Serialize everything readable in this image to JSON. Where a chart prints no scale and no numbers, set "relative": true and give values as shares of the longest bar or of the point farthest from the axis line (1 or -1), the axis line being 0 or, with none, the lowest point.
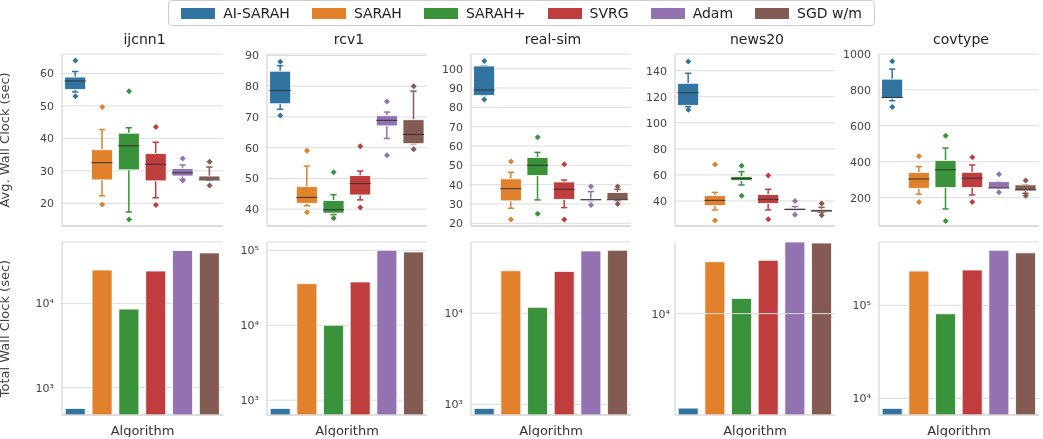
{
  "chart_data": [
    {
      "type": "other",
      "legend": "top",
      "series": [
        {
          "name": "AI-SARAH",
          "color": "#3274a1"
        },
        {
          "name": "SARAH",
          "color": "#e1812c"
        },
        {
          "name": "SARAH+",
          "color": "#3a923a"
        },
        {
          "name": "SVRG",
          "color": "#c03d3e"
        },
        {
          "name": "Adam",
          "color": "#9372b2"
        },
        {
          "name": "SGD w/m",
          "color": "#845b53"
        }
      ]
    },
    {
      "type": "box",
      "title": "ijcnn1",
      "ylabel": "Avg. Wall Clock (sec)",
      "categories": [
        null,
        null,
        null,
        null,
        null,
        null
      ],
      "colors": [
        "#3274a1",
        "#e1812c",
        "#3a923a",
        "#c03d3e",
        "#9372b2",
        "#845b53"
      ],
      "ylim": [
        13,
        66
      ],
      "yticks": [
        20,
        30,
        40,
        50,
        60
      ],
      "grid": "y",
      "tick_labels": "y",
      "boxes": [
        {
          "low": 54.3,
          "q1": 55.1,
          "median": 57.7,
          "q3": 58.9,
          "high": 60.6,
          "outliers": [
            64,
            53
          ]
        },
        {
          "low": 22.3,
          "q1": 27.2,
          "median": 32.5,
          "q3": 36.5,
          "high": 42.7,
          "outliers": [
            49.7,
            19.6
          ]
        },
        {
          "low": 17.3,
          "q1": 30.3,
          "median": 37.7,
          "q3": 41.6,
          "high": 43.3,
          "outliers": [
            54.5,
            15
          ]
        },
        {
          "low": 21.7,
          "q1": 26.9,
          "median": 32,
          "q3": 35.3,
          "high": 38.8,
          "outliers": [
            43.5,
            19.5
          ]
        },
        {
          "low": 27.4,
          "q1": 28.4,
          "median": 29.4,
          "q3": 30.7,
          "high": 31.8,
          "outliers": [
            33.8,
            27
          ]
        },
        {
          "low": 27.2,
          "q1": 27.2,
          "median": 27.2,
          "q3": 28.4,
          "high": 31.2,
          "outliers": [
            32.8,
            25.5
          ]
        }
      ]
    },
    {
      "type": "box",
      "title": "rcv1",
      "categories": [
        null,
        null,
        null,
        null,
        null,
        null
      ],
      "colors": [
        "#3274a1",
        "#e1812c",
        "#3a923a",
        "#c03d3e",
        "#9372b2",
        "#845b53"
      ],
      "ylim": [
        34.5,
        90.5
      ],
      "yticks": [
        40,
        50,
        60,
        70,
        80,
        90
      ],
      "grid": "y",
      "tick_labels": "y",
      "boxes": [
        {
          "low": 72.5,
          "q1": 74.3,
          "median": 78.6,
          "q3": 84.9,
          "high": 86.7,
          "outliers": [
            88,
            70.5
          ]
        },
        {
          "low": 41.1,
          "q1": 41.9,
          "median": 43.8,
          "q3": 47.3,
          "high": 54,
          "outliers": [
            59,
            39
          ]
        },
        {
          "low": 38.2,
          "q1": 38.7,
          "median": 39.8,
          "q3": 42.8,
          "high": 44.7,
          "outliers": [
            52,
            37
          ]
        },
        {
          "low": 43,
          "q1": 44.6,
          "median": 48.3,
          "q3": 50.9,
          "high": 52.4,
          "outliers": [
            60.5,
            40.5
          ]
        },
        {
          "low": 63,
          "q1": 67.1,
          "median": 68.9,
          "q3": 70.4,
          "high": 71.6,
          "outliers": [
            75,
            57.5
          ]
        },
        {
          "low": 61.3,
          "q1": 61.3,
          "median": 64.3,
          "q3": 69.1,
          "high": 78.4,
          "outliers": [
            80,
            59.5
          ]
        }
      ]
    },
    {
      "type": "box",
      "title": "real-sim",
      "categories": [
        null,
        null,
        null,
        null,
        null,
        null
      ],
      "colors": [
        "#3274a1",
        "#e1812c",
        "#3a923a",
        "#c03d3e",
        "#9372b2",
        "#845b53"
      ],
      "ylim": [
        18.6,
        107.6
      ],
      "yticks": [
        20,
        30,
        40,
        50,
        60,
        70,
        80,
        90,
        100
      ],
      "grid": "y",
      "tick_labels": "y",
      "boxes": [
        {
          "low": 86.2,
          "q1": 86.2,
          "median": 89,
          "q3": 101.4,
          "high": 101.4,
          "outliers": [
            104,
            84
          ]
        },
        {
          "low": 27.8,
          "q1": 31.6,
          "median": 37.9,
          "q3": 43,
          "high": 46.4,
          "outliers": [
            52,
            22
          ]
        },
        {
          "low": 32.1,
          "q1": 44.7,
          "median": 50,
          "q3": 54,
          "high": 56.7,
          "outliers": [
            64.5,
            25
          ]
        },
        {
          "low": 28.1,
          "q1": 32.4,
          "median": 37.6,
          "q3": 41.4,
          "high": 42.4,
          "outliers": [
            50.5,
            22
          ]
        },
        {
          "low": 31.7,
          "q1": 31.7,
          "median": 32.2,
          "q3": 32.6,
          "high": 36.4,
          "outliers": [
            39,
            29.5
          ]
        },
        {
          "low": 31.7,
          "q1": 32.1,
          "median": 32.2,
          "q3": 35.9,
          "high": 37.6,
          "outliers": [
            39,
            30
          ]
        }
      ]
    },
    {
      "type": "box",
      "title": "news20",
      "categories": [
        null,
        null,
        null,
        null,
        null,
        null
      ],
      "colors": [
        "#3274a1",
        "#e1812c",
        "#3a923a",
        "#c03d3e",
        "#9372b2",
        "#845b53"
      ],
      "ylim": [
        20.8,
        152.8
      ],
      "yticks": [
        40,
        60,
        80,
        100,
        120,
        140
      ],
      "grid": "y",
      "tick_labels": "y",
      "boxes": [
        {
          "low": 112.3,
          "q1": 113.4,
          "median": 123.1,
          "q3": 130.3,
          "high": 138,
          "outliers": [
            147,
            110
          ]
        },
        {
          "low": 33.1,
          "q1": 36.4,
          "median": 40.5,
          "q3": 44.1,
          "high": 46.6,
          "outliers": [
            68,
            25
          ]
        },
        {
          "low": 52.3,
          "q1": 55.6,
          "median": 57.2,
          "q3": 58.7,
          "high": 62.5,
          "outliers": [
            67,
            44
          ]
        },
        {
          "low": 33.1,
          "q1": 38.2,
          "median": 41.3,
          "q3": 44.9,
          "high": 49,
          "outliers": [
            59.5,
            26
          ]
        },
        {
          "low": 32.8,
          "q1": 32.8,
          "median": 33.6,
          "q3": 34.4,
          "high": 35.7,
          "outliers": [
            40,
            29.5
          ]
        },
        {
          "low": 31.3,
          "q1": 31.8,
          "median": 32.3,
          "q3": 33.6,
          "high": 35.1,
          "outliers": [
            38,
            29
          ]
        }
      ]
    },
    {
      "type": "box",
      "title": "covtype",
      "categories": [
        null,
        null,
        null,
        null,
        null,
        null
      ],
      "colors": [
        "#3274a1",
        "#e1812c",
        "#3a923a",
        "#c03d3e",
        "#9372b2",
        "#845b53"
      ],
      "ylim": [
        42,
        1000
      ],
      "yticks": [
        200,
        400,
        600,
        800,
        1000
      ],
      "grid": "y",
      "tick_labels": "y",
      "boxes": [
        {
          "low": 740,
          "q1": 754,
          "median": 758,
          "q3": 860,
          "high": 916,
          "outliers": [
            960,
            705
          ]
        },
        {
          "low": 219,
          "q1": 252,
          "median": 304,
          "q3": 340,
          "high": 373,
          "outliers": [
            430,
            175
          ]
        },
        {
          "low": 137,
          "q1": 256,
          "median": 355,
          "q3": 407,
          "high": 476,
          "outliers": [
            545,
            70
          ]
        },
        {
          "low": 215,
          "q1": 256,
          "median": 308,
          "q3": 341,
          "high": 382,
          "outliers": [
            425,
            175
          ]
        },
        {
          "low": 252,
          "q1": 252,
          "median": 254,
          "q3": 289,
          "high": 289,
          "outliers": [
            330,
            230
          ]
        },
        {
          "low": 224,
          "q1": 239,
          "median": 243,
          "q3": 271,
          "high": 271,
          "outliers": [
            295,
            210
          ]
        }
      ]
    },
    {
      "type": "bar",
      "ylabel": "Total Wall Clock (sec)",
      "xlabel": "Algorithm",
      "categories": [
        null,
        null,
        null,
        null,
        null,
        null
      ],
      "colors": [
        "#3274a1",
        "#e1812c",
        "#3a923a",
        "#c03d3e",
        "#9372b2",
        "#845b53"
      ],
      "log": true,
      "ylim": [
        473,
        54000
      ],
      "yticks": [
        {
          "value": 1000,
          "label": "10³"
        },
        {
          "value": 10000,
          "label": "10⁴"
        }
      ],
      "grid": "y",
      "tick_labels": "y",
      "values": [
        566,
        25100,
        8600,
        24400,
        42800,
        40000
      ]
    },
    {
      "type": "bar",
      "xlabel": "Algorithm",
      "categories": [
        null,
        null,
        null,
        null,
        null,
        null
      ],
      "colors": [
        "#3274a1",
        "#e1812c",
        "#3a923a",
        "#c03d3e",
        "#9372b2",
        "#845b53"
      ],
      "log": true,
      "ylim": [
        634,
        129000
      ],
      "yticks": [
        {
          "value": 1000,
          "label": "10³"
        },
        {
          "value": 10000,
          "label": "10⁴"
        },
        {
          "value": 100000,
          "label": "10⁵"
        }
      ],
      "grid": "y",
      "tick_labels": "y",
      "values": [
        776,
        35900,
        10000,
        37800,
        100000,
        95000
      ]
    },
    {
      "type": "bar",
      "xlabel": "Algorithm",
      "categories": [
        null,
        null,
        null,
        null,
        null,
        null
      ],
      "colors": [
        "#3274a1",
        "#e1812c",
        "#3a923a",
        "#c03d3e",
        "#9372b2",
        "#845b53"
      ],
      "log": true,
      "ylim": [
        766,
        60300
      ],
      "yticks": [
        {
          "value": 1000,
          "label": "10³"
        },
        {
          "value": 10000,
          "label": "10⁴"
        }
      ],
      "grid": "y",
      "tick_labels": "y",
      "values": [
        905,
        29200,
        11600,
        28700,
        48100,
        49000
      ]
    },
    {
      "type": "bar",
      "xlabel": "Algorithm",
      "categories": [
        null,
        null,
        null,
        null,
        null,
        null
      ],
      "colors": [
        "#3274a1",
        "#e1812c",
        "#3a923a",
        "#c03d3e",
        "#9372b2",
        "#845b53"
      ],
      "relative": true,
      "ref_lines": [
        {
          "axis": "y",
          "value": 0.586,
          "label": "10⁴"
        }
      ],
      "tick_labels": "y",
      "values": [
        0.04,
        0.886,
        0.674,
        0.894,
        1,
        0.994
      ]
    },
    {
      "type": "bar",
      "xlabel": "Algorithm",
      "categories": [
        null,
        null,
        null,
        null,
        null,
        null
      ],
      "colors": [
        "#3274a1",
        "#e1812c",
        "#3a923a",
        "#c03d3e",
        "#9372b2",
        "#845b53"
      ],
      "log": true,
      "ylim": [
        6650,
        477000
      ],
      "yticks": [
        {
          "value": 10000,
          "label": "10⁴"
        },
        {
          "value": 100000,
          "label": "10⁵"
        }
      ],
      "grid": "y",
      "tick_labels": "y",
      "values": [
        7830,
        233000,
        81000,
        239000,
        389000,
        365000
      ]
    }
  ]
}
